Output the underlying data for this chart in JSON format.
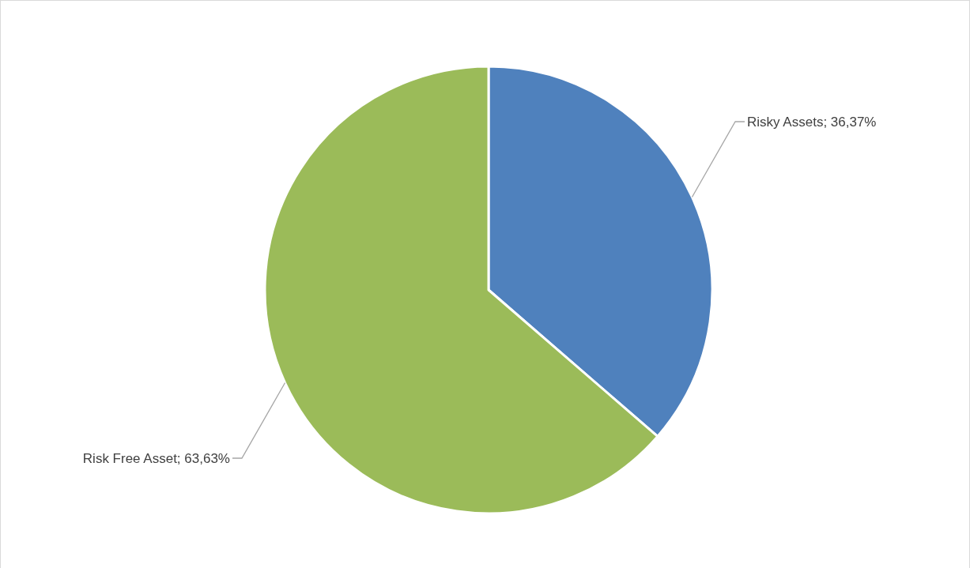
{
  "chart_data": {
    "type": "pie",
    "categories": [
      "Risky Assets",
      "Risk Free Asset"
    ],
    "values": [
      36.37,
      63.63
    ],
    "value_labels": [
      "36,37%",
      "63,63%"
    ],
    "colors": [
      "#4f81bd",
      "#9bbb59"
    ],
    "legend": false
  }
}
